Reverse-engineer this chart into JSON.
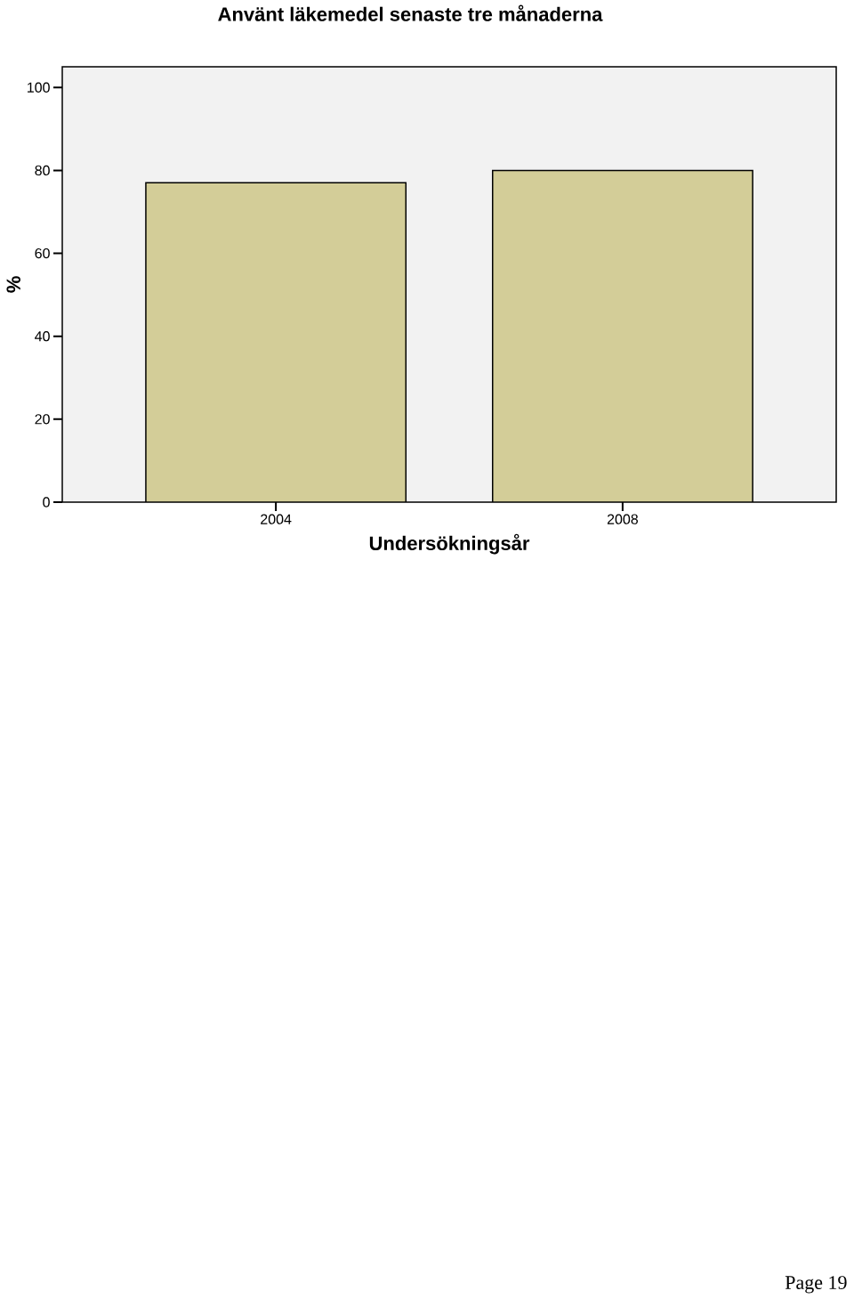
{
  "chart_data": {
    "type": "bar",
    "title": "Använt läkemedel senaste tre månaderna",
    "xlabel": "Undersökningsår",
    "ylabel": "%",
    "categories": [
      "2004",
      "2008"
    ],
    "values": [
      77,
      80
    ],
    "color": "#d3cd98",
    "ylim": [
      0,
      105
    ],
    "yticks": [
      0,
      20,
      40,
      60,
      80,
      100
    ],
    "annotations": [
      "Page 19"
    ]
  }
}
